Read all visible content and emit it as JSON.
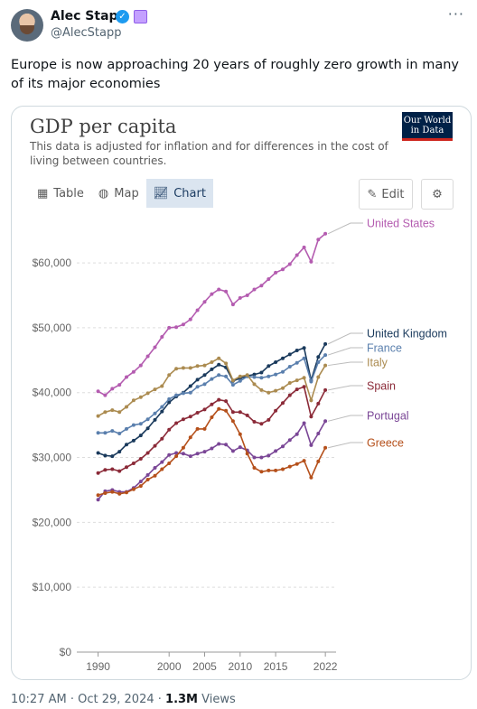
{
  "post": {
    "author_name": "Alec Stapp",
    "handle": "@AlecStapp",
    "text": "Europe is now approaching 20 years of roughly zero growth in many of its major economies",
    "time": "10:27 AM",
    "date": "Oct 29, 2024",
    "views_count": "1.3M",
    "views_label": "Views"
  },
  "card": {
    "title": "GDP per capita",
    "subtitle": "This data is adjusted for inflation and for differences in the cost of living between countries.",
    "logo_line1": "Our World",
    "logo_line2": "in Data",
    "tabs": [
      {
        "label": "Table",
        "icon": "table-icon"
      },
      {
        "label": "Map",
        "icon": "globe-icon"
      },
      {
        "label": "Chart",
        "icon": "line-chart-icon",
        "active": true
      }
    ],
    "edit_label": "Edit",
    "settings_icon": "gear-icon"
  },
  "chart_data": {
    "type": "line",
    "title": "GDP per capita",
    "xlabel": "",
    "ylabel": "",
    "xlim": [
      1987,
      2023
    ],
    "ylim": [
      0,
      66000
    ],
    "x_ticks": [
      1990,
      2000,
      2005,
      2010,
      2015,
      2022
    ],
    "x_tick_labels": [
      "1990",
      "2000",
      "2005",
      "2010",
      "2015",
      "2022"
    ],
    "y_ticks": [
      0,
      10000,
      20000,
      30000,
      40000,
      50000,
      60000
    ],
    "y_tick_labels": [
      "$0",
      "$10,000",
      "$20,000",
      "$30,000",
      "$40,000",
      "$50,000",
      "$60,000"
    ],
    "grid": true,
    "legend": "right, labels at line ends",
    "x": [
      1990,
      1991,
      1992,
      1993,
      1994,
      1995,
      1996,
      1997,
      1998,
      1999,
      2000,
      2001,
      2002,
      2003,
      2004,
      2005,
      2006,
      2007,
      2008,
      2009,
      2010,
      2011,
      2012,
      2013,
      2014,
      2015,
      2016,
      2017,
      2018,
      2019,
      2020,
      2021,
      2022
    ],
    "series": [
      {
        "name": "United States",
        "color": "#b45cb0",
        "values": [
          40200,
          39600,
          40600,
          41200,
          42400,
          43200,
          44200,
          45600,
          47000,
          48600,
          50000,
          50100,
          50500,
          51300,
          52700,
          54000,
          55200,
          55900,
          55600,
          53600,
          54600,
          55000,
          55900,
          56500,
          57500,
          58500,
          59000,
          59800,
          61200,
          62400,
          60200,
          63600,
          64500
        ]
      },
      {
        "name": "United Kingdom",
        "color": "#1a3a5c",
        "values": [
          30700,
          30300,
          30200,
          30900,
          32000,
          32600,
          33400,
          34500,
          35800,
          37100,
          38500,
          39400,
          40000,
          41000,
          42000,
          42700,
          43600,
          44300,
          43900,
          41800,
          42200,
          42600,
          42800,
          43100,
          44100,
          44700,
          45300,
          45900,
          46500,
          46900,
          41900,
          45500,
          47500
        ]
      },
      {
        "name": "France",
        "color": "#5a7fad",
        "values": [
          33800,
          33800,
          34100,
          33700,
          34400,
          35000,
          35200,
          35900,
          36800,
          37800,
          39000,
          39600,
          39900,
          40000,
          40900,
          41300,
          42100,
          42700,
          42500,
          41200,
          41800,
          42500,
          42400,
          42300,
          42500,
          42800,
          43200,
          44000,
          44600,
          45300,
          41700,
          44700,
          45800
        ]
      },
      {
        "name": "Italy",
        "color": "#ab8b50",
        "values": [
          36400,
          37000,
          37300,
          37000,
          37800,
          38800,
          39300,
          39900,
          40500,
          41000,
          42700,
          43700,
          43800,
          43800,
          44100,
          44200,
          44700,
          45300,
          44500,
          41900,
          42500,
          42700,
          41300,
          40400,
          40000,
          40300,
          40700,
          41500,
          41900,
          42300,
          38800,
          42400,
          44200
        ]
      },
      {
        "name": "Spain",
        "color": "#8b2a38",
        "values": [
          27600,
          28100,
          28200,
          27900,
          28500,
          29100,
          29800,
          30700,
          31800,
          32900,
          34300,
          35300,
          35900,
          36300,
          36900,
          37400,
          38200,
          38900,
          38700,
          37000,
          37000,
          36500,
          35500,
          35200,
          35800,
          37200,
          38400,
          39600,
          40500,
          40900,
          36300,
          38300,
          40400
        ]
      },
      {
        "name": "Portugal",
        "color": "#7a4696",
        "values": [
          23500,
          24800,
          25000,
          24700,
          24700,
          25300,
          26300,
          27300,
          28400,
          29300,
          30400,
          30700,
          30600,
          30200,
          30600,
          30900,
          31400,
          32100,
          32000,
          31000,
          31600,
          31100,
          30000,
          30000,
          30300,
          31000,
          31700,
          32700,
          33600,
          35300,
          31900,
          33700,
          35600
        ]
      },
      {
        "name": "Greece",
        "color": "#b5501b",
        "values": [
          24200,
          24500,
          24700,
          24400,
          24600,
          25100,
          25600,
          26600,
          27200,
          28200,
          29100,
          30200,
          31500,
          33100,
          34400,
          34400,
          36200,
          37500,
          37200,
          35600,
          33600,
          30600,
          28400,
          27800,
          28000,
          28000,
          28200,
          28600,
          29000,
          29500,
          26900,
          29400,
          31500
        ]
      }
    ]
  }
}
